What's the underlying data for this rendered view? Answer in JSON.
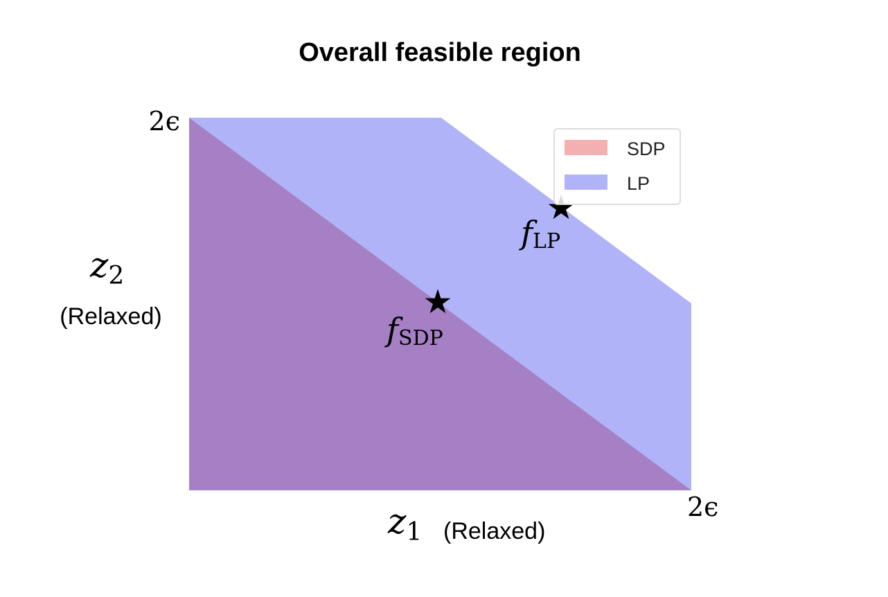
{
  "title": "Overall feasible region",
  "y_axis": {
    "symbol": "z",
    "subscript": "2",
    "note": "(Relaxed)",
    "tick": "2ϵ"
  },
  "x_axis": {
    "symbol": "z",
    "subscript": "1",
    "note": "(Relaxed)",
    "tick": "2ϵ"
  },
  "legend": [
    "SDP",
    "LP"
  ],
  "points": [
    {
      "symbol": "f",
      "subscript": "SDP"
    },
    {
      "symbol": "f",
      "subscript": "LP"
    }
  ]
}
